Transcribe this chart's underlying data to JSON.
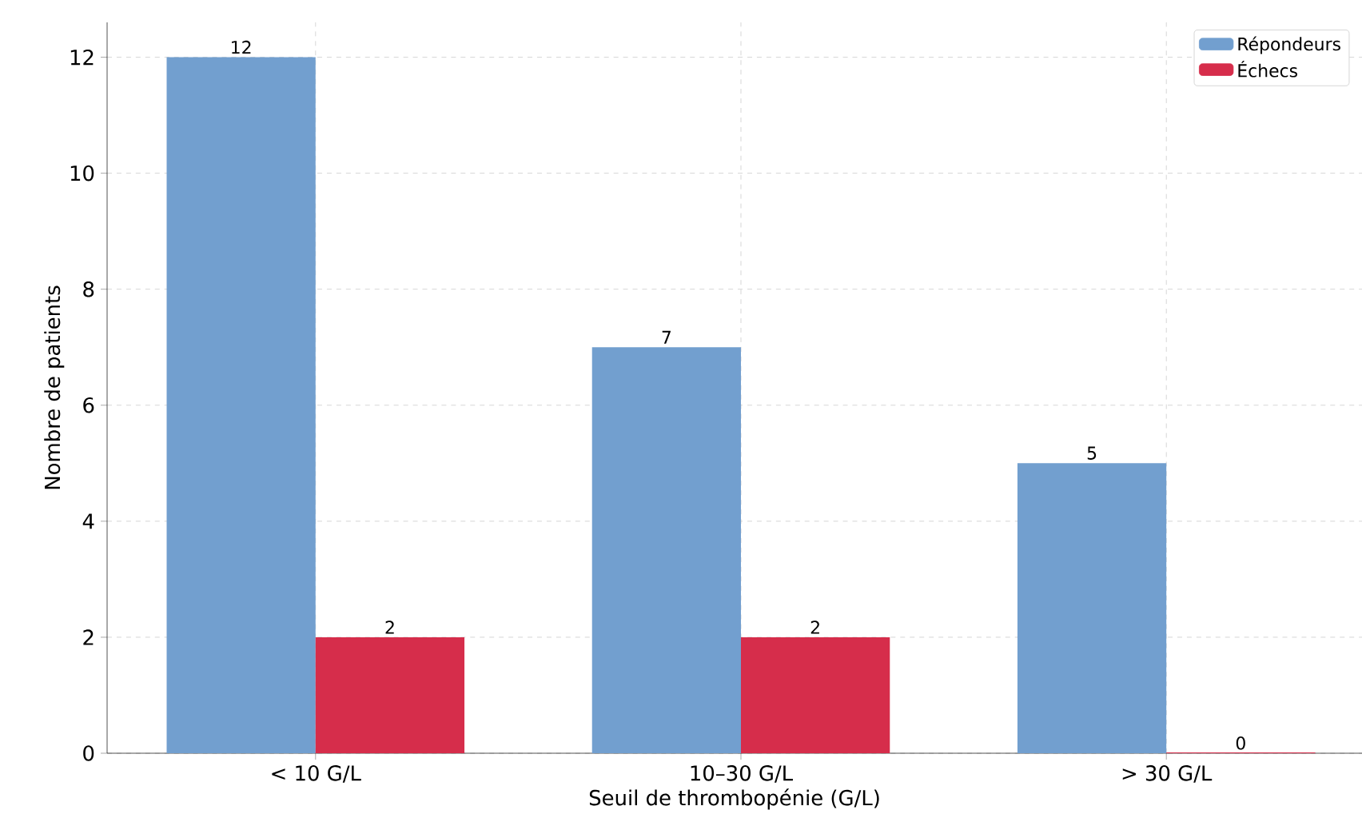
{
  "chart_data": {
    "type": "bar",
    "xlabel": "Seuil de thrombopénie (G/L)",
    "ylabel": "Nombre de patients",
    "categories": [
      "< 10 G/L",
      "10–30 G/L",
      "> 30 G/L"
    ],
    "series": [
      {
        "name": "Répondeurs",
        "color": "#729fcf",
        "values": [
          12,
          7,
          5
        ]
      },
      {
        "name": "Échecs",
        "color": "#d62d4b",
        "values": [
          2,
          2,
          0
        ]
      }
    ],
    "ylim": [
      0,
      12.6
    ],
    "yticks": [
      0,
      2,
      4,
      6,
      8,
      10,
      12
    ],
    "grid": true,
    "legend": "top right",
    "data_labels": true
  }
}
